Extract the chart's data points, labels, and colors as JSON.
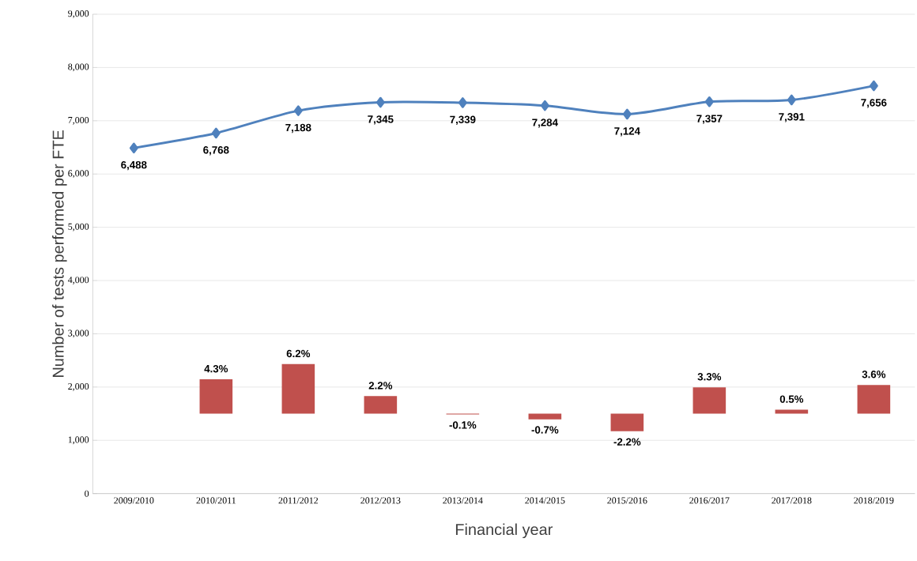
{
  "chart_data": {
    "type": "line",
    "xlabel": "Financial year",
    "ylabel": "Number of tests performed per FTE",
    "categories": [
      "2009/2010",
      "2010/2011",
      "2011/2012",
      "2012/2013",
      "2013/2014",
      "2014/2015",
      "2015/2016",
      "2016/2017",
      "2017/2018",
      "2018/2019"
    ],
    "ylim": [
      0,
      9000
    ],
    "yticks": [
      0,
      {
        "value": 1000,
        "label": "1,000"
      },
      {
        "value": 2000,
        "label": "2,000"
      },
      {
        "value": 3000,
        "label": "3,000"
      },
      {
        "value": 4000,
        "label": "4,000"
      },
      {
        "value": 5000,
        "label": "5,000"
      },
      {
        "value": 6000,
        "label": "6,000"
      },
      {
        "value": 7000,
        "label": "7,000"
      },
      {
        "value": 8000,
        "label": "8,000"
      },
      {
        "value": 9000,
        "label": "9,000"
      }
    ],
    "y2lim": [
      -10,
      50
    ],
    "grid": "y",
    "marker": "diamond",
    "series": [
      {
        "color": "#4f81bd",
        "values": [
          6488,
          6768,
          7188,
          7345,
          7339,
          7284,
          7124,
          7357,
          7391,
          7656
        ],
        "value_labels": [
          "6,488",
          "6,768",
          "7,188",
          "7,345",
          "7,339",
          "7,284",
          "7,124",
          "7,357",
          "7,391",
          "7,656"
        ]
      },
      {
        "type": "bar",
        "axis": "y2",
        "color": "#c0504d",
        "values": [
          null,
          4.3,
          6.2,
          2.2,
          -0.1,
          -0.7,
          -2.2,
          3.3,
          0.5,
          3.6
        ],
        "value_labels": [
          null,
          "4.3%",
          "6.2%",
          "2.2%",
          "-0.1%",
          "-0.7%",
          "-2.2%",
          "3.3%",
          "0.5%",
          "3.6%"
        ]
      }
    ]
  }
}
